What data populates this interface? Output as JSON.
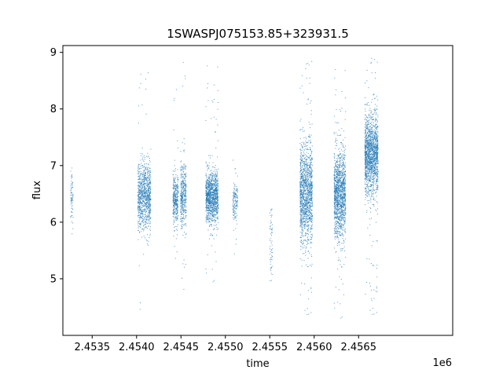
{
  "chart_data": {
    "type": "scatter",
    "title": "1SWASPJ075153.85+323931.5",
    "xlabel": "time",
    "ylabel": "flux",
    "x_offset_label": "1e6",
    "x_scale": 1000000,
    "xlim": [
      2453170,
      2457560
    ],
    "ylim": [
      4.0,
      9.12
    ],
    "x_ticks": [
      2453500,
      2454000,
      2454500,
      2455000,
      2455500,
      2456000,
      2456500
    ],
    "x_tick_labels": [
      "2.4535",
      "2.4540",
      "2.4545",
      "2.4550",
      "2.4555",
      "2.4560",
      "2.4565"
    ],
    "y_ticks": [
      5,
      6,
      7,
      8,
      9
    ],
    "y_tick_labels": [
      "5",
      "6",
      "7",
      "8",
      "9"
    ],
    "grid": false,
    "marker_color": "#1f77b4",
    "clusters": [
      {
        "x_start": 2453255,
        "x_end": 2453285,
        "y_center": 6.45,
        "y_spread": 0.25,
        "y_min": 5.5,
        "y_max": 7.25,
        "n": 70
      },
      {
        "x_start": 2454015,
        "x_end": 2454160,
        "y_center": 6.45,
        "y_spread": 0.3,
        "y_min": 4.3,
        "y_max": 8.75,
        "n": 900
      },
      {
        "x_start": 2454410,
        "x_end": 2454470,
        "y_center": 6.4,
        "y_spread": 0.22,
        "y_min": 5.35,
        "y_max": 8.65,
        "n": 330
      },
      {
        "x_start": 2454495,
        "x_end": 2454560,
        "y_center": 6.45,
        "y_spread": 0.28,
        "y_min": 4.75,
        "y_max": 8.95,
        "n": 380
      },
      {
        "x_start": 2454780,
        "x_end": 2454920,
        "y_center": 6.45,
        "y_spread": 0.22,
        "y_min": 4.9,
        "y_max": 8.85,
        "n": 1100
      },
      {
        "x_start": 2455085,
        "x_end": 2455140,
        "y_center": 6.4,
        "y_spread": 0.2,
        "y_min": 5.3,
        "y_max": 7.2,
        "n": 140
      },
      {
        "x_start": 2455500,
        "x_end": 2455530,
        "y_center": 5.7,
        "y_spread": 0.35,
        "y_min": 4.8,
        "y_max": 6.25,
        "n": 60
      },
      {
        "x_start": 2455840,
        "x_end": 2455980,
        "y_center": 6.5,
        "y_spread": 0.45,
        "y_min": 4.3,
        "y_max": 8.85,
        "n": 1300
      },
      {
        "x_start": 2456225,
        "x_end": 2456355,
        "y_center": 6.5,
        "y_spread": 0.38,
        "y_min": 4.25,
        "y_max": 8.8,
        "n": 1300
      },
      {
        "x_start": 2456570,
        "x_end": 2456720,
        "y_center": 7.2,
        "y_spread": 0.35,
        "y_min": 4.3,
        "y_max": 8.95,
        "n": 1500
      }
    ]
  }
}
